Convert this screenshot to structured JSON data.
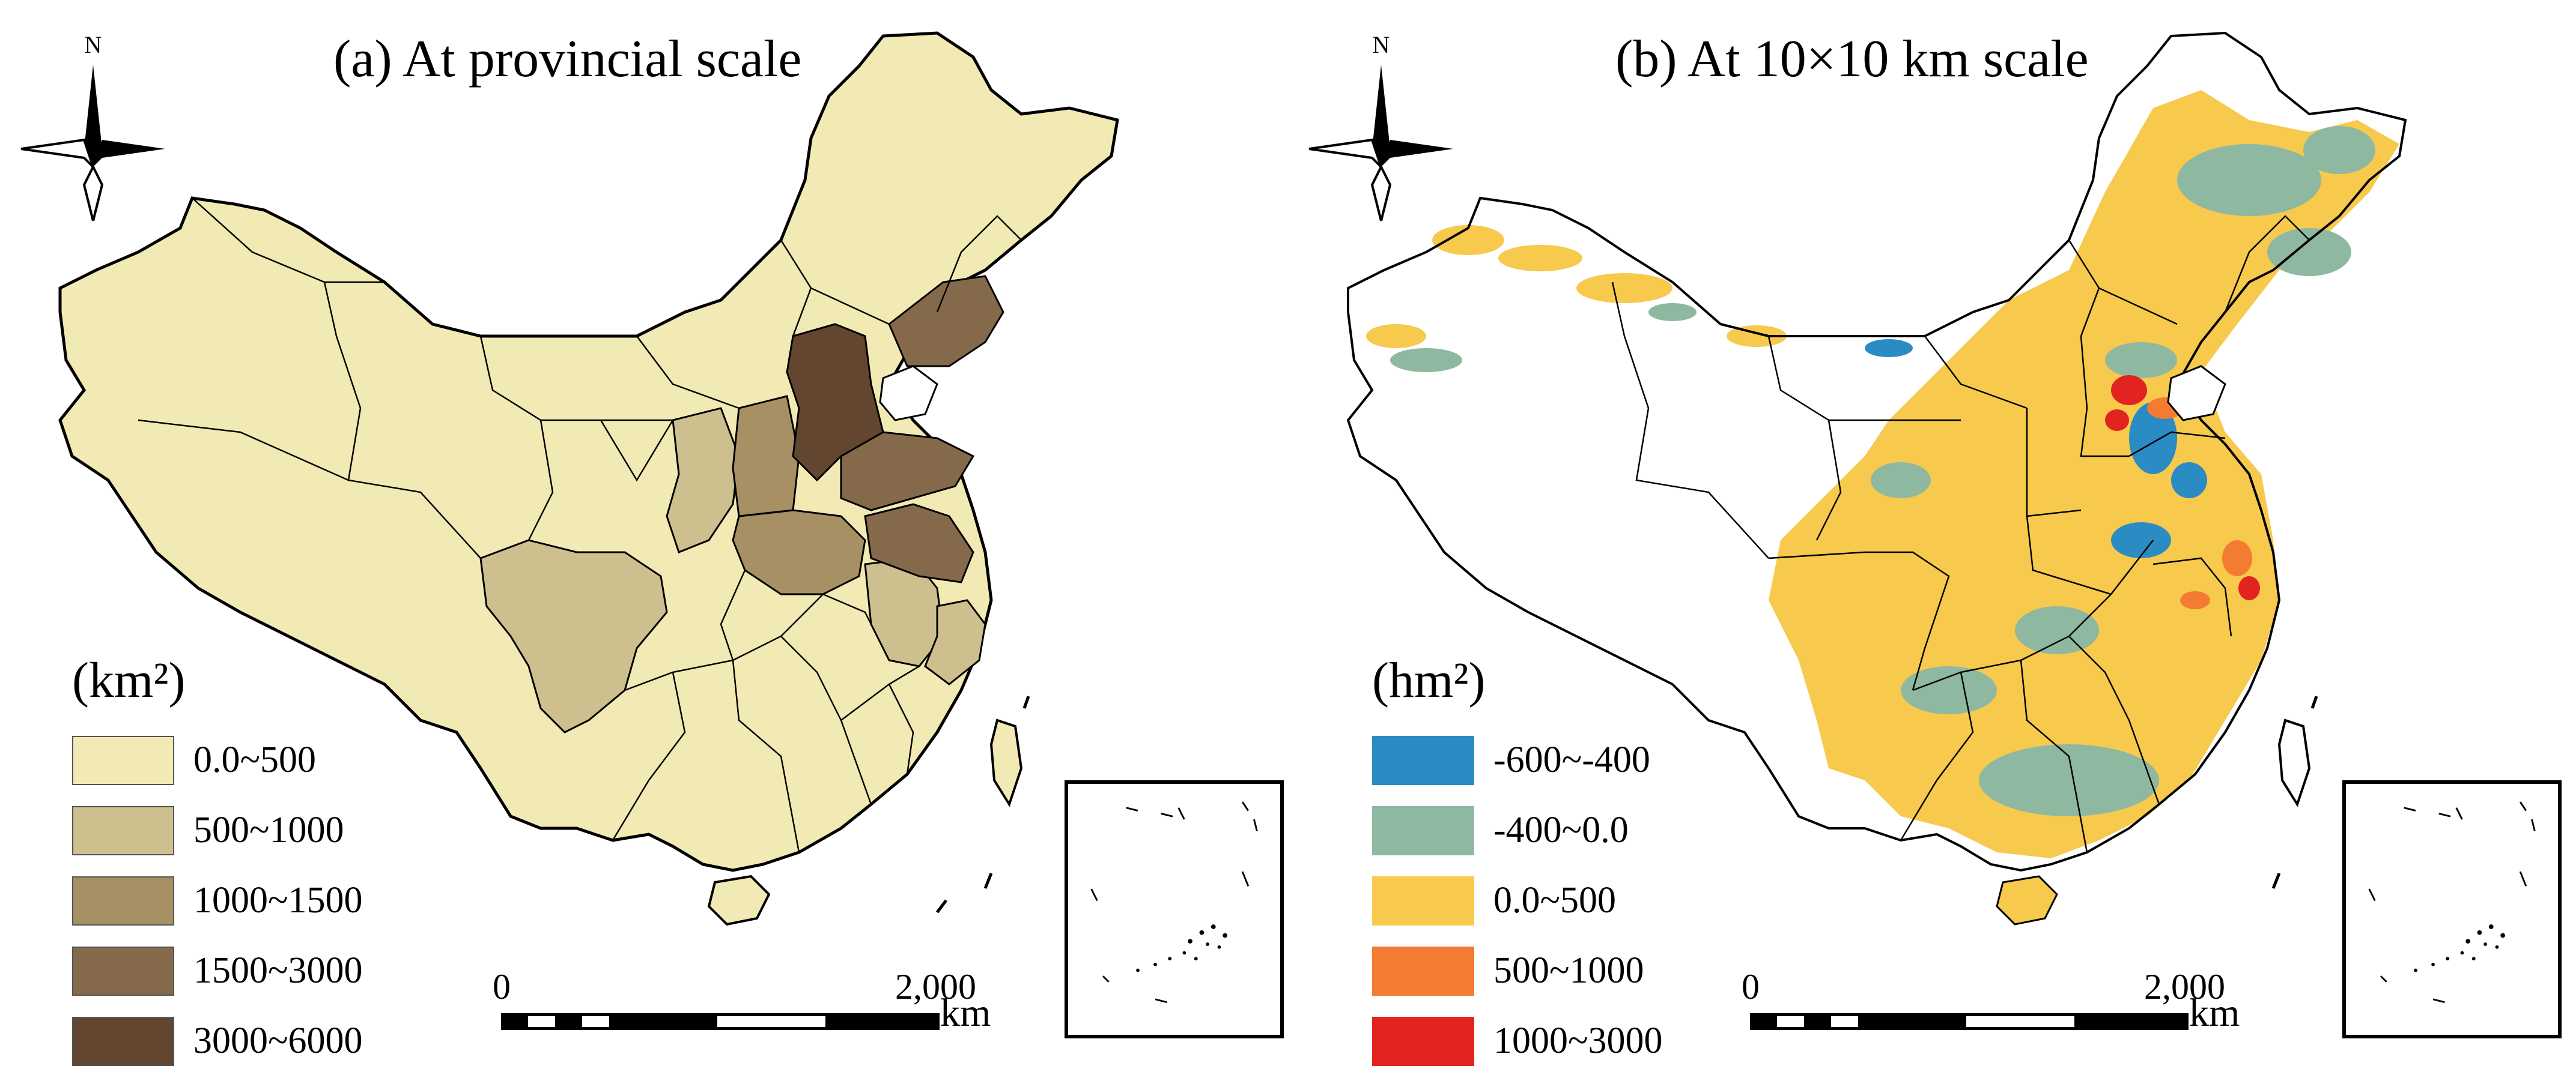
{
  "panel_a": {
    "title": "(a) At provincial scale",
    "compass_label": "N",
    "legend": {
      "title": "(km²)",
      "items": [
        {
          "label": "0.0~500",
          "color": "#f2eab4"
        },
        {
          "label": "500~1000",
          "color": "#cec08e"
        },
        {
          "label": "1000~1500",
          "color": "#a69064"
        },
        {
          "label": "1500~3000",
          "color": "#846a4b"
        },
        {
          "label": "3000~6000",
          "color": "#634630"
        }
      ]
    },
    "scale": {
      "start": "0",
      "end": "2,000",
      "unit": "km"
    }
  },
  "panel_b": {
    "title": "(b) At 10×10 km scale",
    "compass_label": "N",
    "legend": {
      "title": "(hm²)",
      "items": [
        {
          "label": "-600~-400",
          "color": "#2b8cc4"
        },
        {
          "label": "-400~0.0",
          "color": "#8fb8a1"
        },
        {
          "label": "0.0~500",
          "color": "#f7c94d"
        },
        {
          "label": "500~1000",
          "color": "#f47c32"
        },
        {
          "label": "1000~3000",
          "color": "#e2231f"
        }
      ]
    },
    "scale": {
      "start": "0",
      "end": "2,000",
      "unit": "km"
    }
  }
}
